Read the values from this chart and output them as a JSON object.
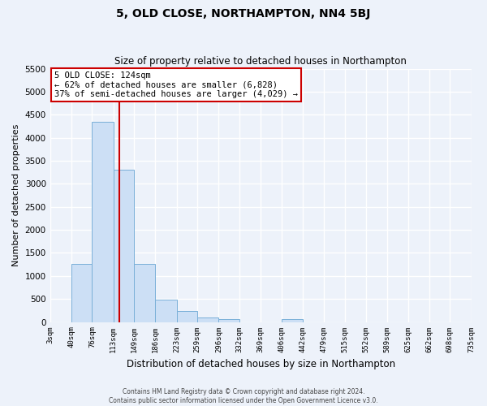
{
  "title": "5, OLD CLOSE, NORTHAMPTON, NN4 5BJ",
  "subtitle": "Size of property relative to detached houses in Northampton",
  "xlabel": "Distribution of detached houses by size in Northampton",
  "ylabel": "Number of detached properties",
  "bar_color": "#ccdff5",
  "bar_edge_color": "#7ab0d8",
  "bin_labels": [
    "3sqm",
    "40sqm",
    "76sqm",
    "113sqm",
    "149sqm",
    "186sqm",
    "223sqm",
    "259sqm",
    "296sqm",
    "332sqm",
    "369sqm",
    "406sqm",
    "442sqm",
    "479sqm",
    "515sqm",
    "552sqm",
    "589sqm",
    "625sqm",
    "662sqm",
    "698sqm",
    "735sqm"
  ],
  "bin_edges": [
    3,
    40,
    76,
    113,
    149,
    186,
    223,
    259,
    296,
    332,
    369,
    406,
    442,
    479,
    515,
    552,
    589,
    625,
    662,
    698,
    735
  ],
  "bar_heights": [
    0,
    1270,
    4350,
    3300,
    1270,
    480,
    240,
    100,
    70,
    0,
    0,
    70,
    0,
    0,
    0,
    0,
    0,
    0,
    0,
    0
  ],
  "ylim": [
    0,
    5500
  ],
  "yticks": [
    0,
    500,
    1000,
    1500,
    2000,
    2500,
    3000,
    3500,
    4000,
    4500,
    5000,
    5500
  ],
  "property_line_x": 124,
  "property_line_color": "#cc0000",
  "annotation_title": "5 OLD CLOSE: 124sqm",
  "annotation_line1": "← 62% of detached houses are smaller (6,828)",
  "annotation_line2": "37% of semi-detached houses are larger (4,029) →",
  "annotation_box_edge_color": "#cc0000",
  "footer_line1": "Contains HM Land Registry data © Crown copyright and database right 2024.",
  "footer_line2": "Contains public sector information licensed under the Open Government Licence v3.0.",
  "background_color": "#edf2fa",
  "grid_color": "#ffffff"
}
